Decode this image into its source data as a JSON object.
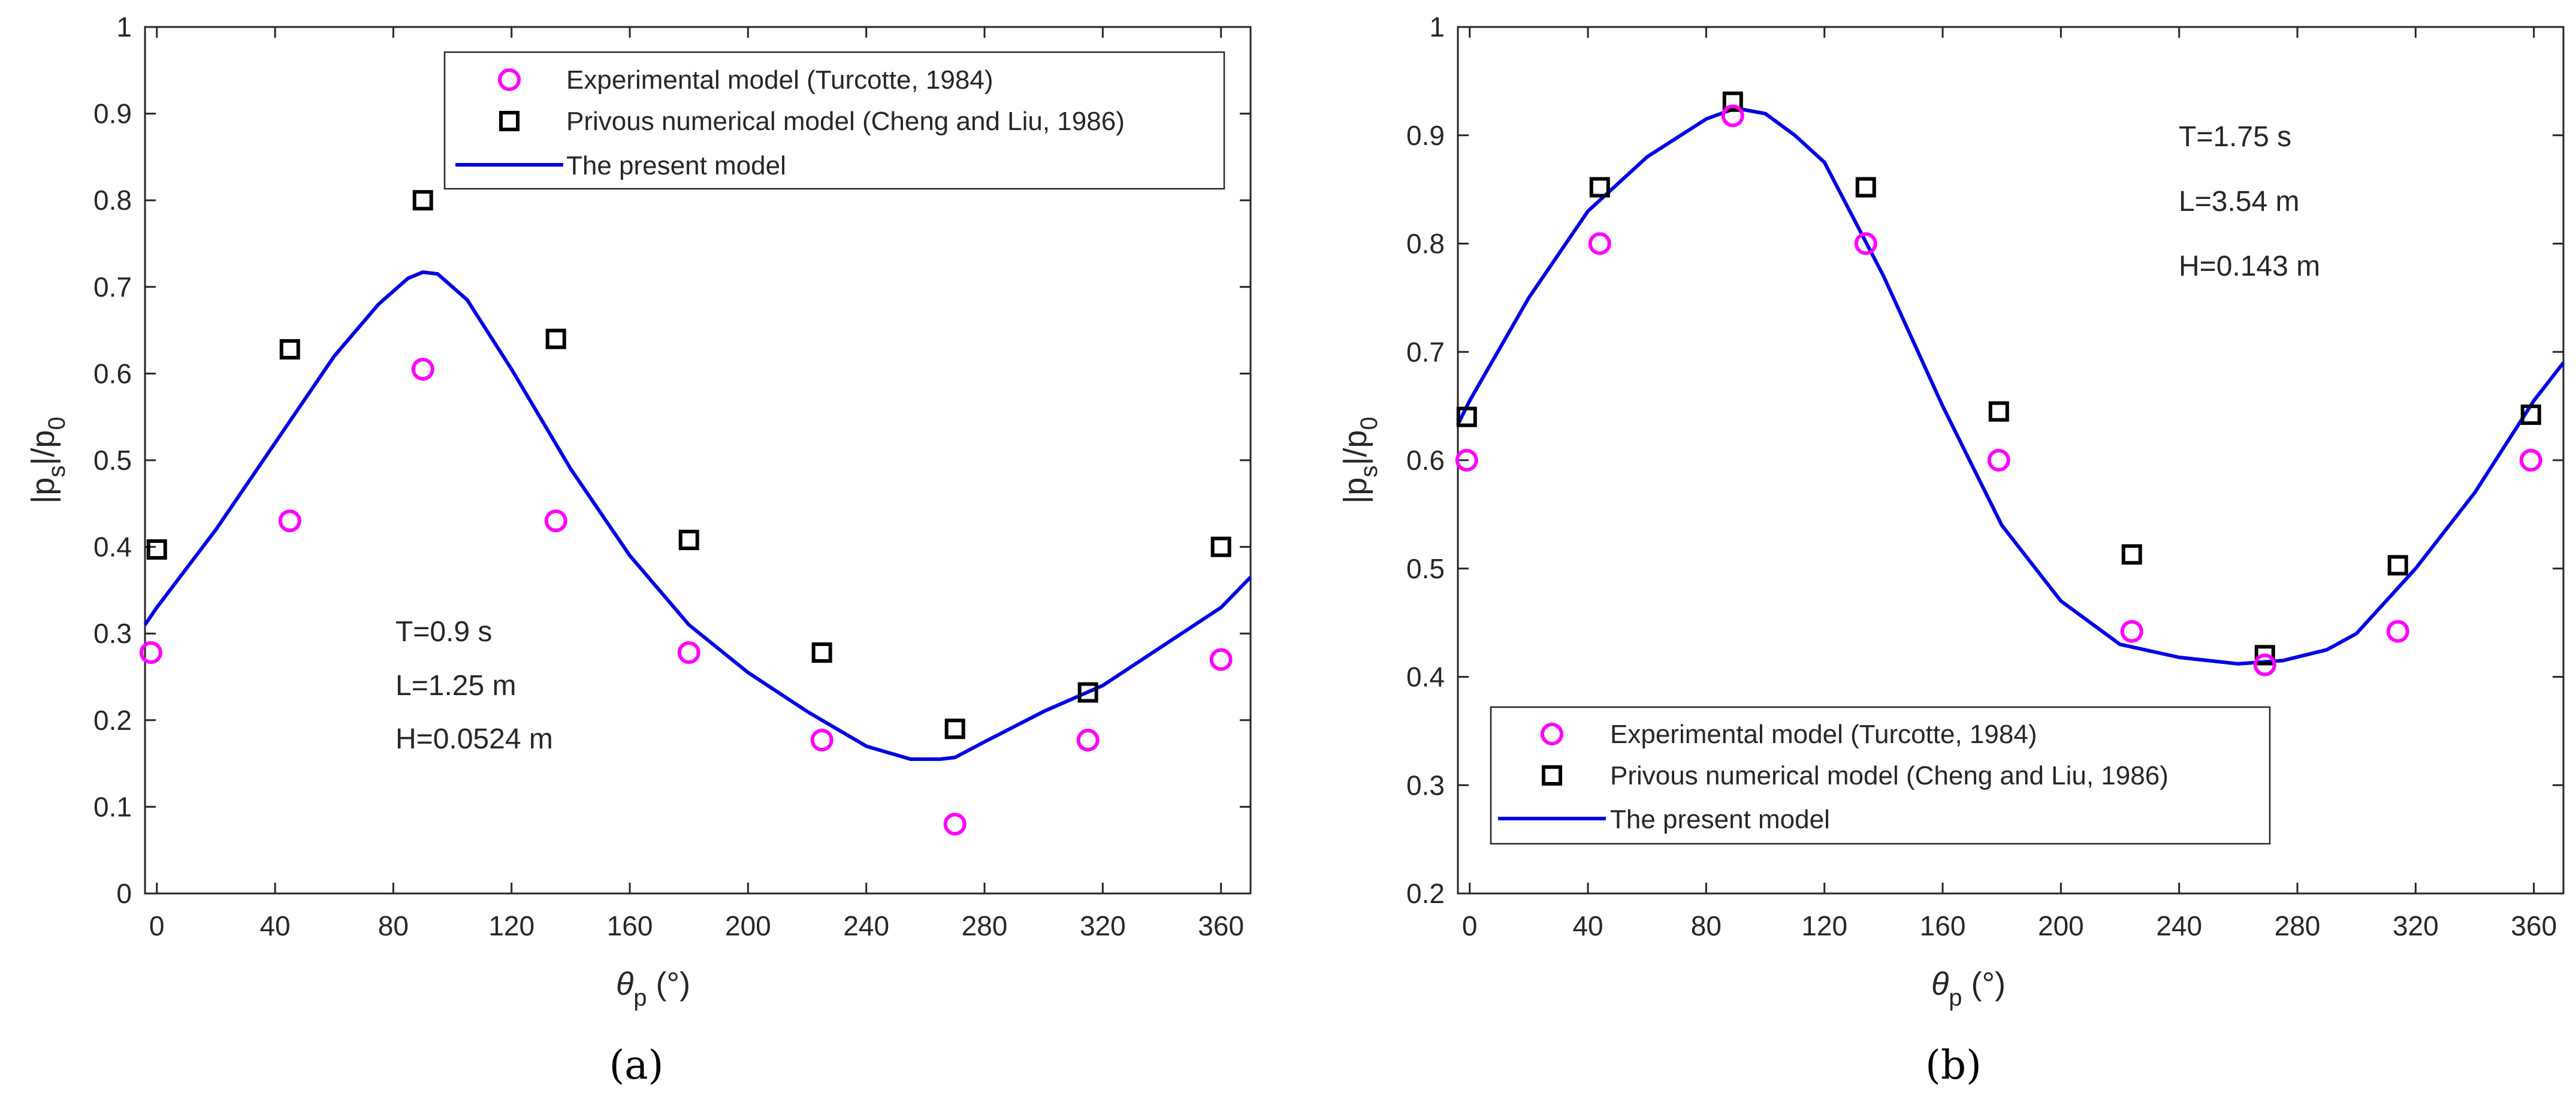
{
  "chart_data": [
    {
      "panel_label": "(a)",
      "type": "line",
      "xlabel_symbol": "θ",
      "xlabel_sub": "p",
      "xlabel_unit": " (°)",
      "ylabel_a": "|p",
      "ylabel_sub1": "s",
      "ylabel_b": "|/p",
      "ylabel_sub2": "0",
      "xlim": [
        -4,
        370
      ],
      "ylim": [
        0,
        1
      ],
      "xticks": [
        0,
        40,
        80,
        120,
        160,
        200,
        240,
        280,
        320,
        360
      ],
      "yticks": [
        0,
        0.1,
        0.2,
        0.3,
        0.4,
        0.5,
        0.6,
        0.7,
        0.8,
        0.9,
        1
      ],
      "ytick_labels": [
        "0",
        "0.1",
        "0.2",
        "0.3",
        "0.4",
        "0.5",
        "0.6",
        "0.7",
        "0.8",
        "0.9",
        "1"
      ],
      "legend_position": "top-right",
      "annotations": [
        "T=0.9 s",
        "L=1.25 m",
        "H=0.0524 m"
      ],
      "series": [
        {
          "name": "Experimental model (Turcotte, 1984)",
          "marker": "circle",
          "color": "#ff00ff",
          "x": [
            -2,
            45,
            90,
            135,
            180,
            225,
            270,
            315,
            360
          ],
          "y": [
            0.278,
            0.43,
            0.605,
            0.43,
            0.278,
            0.177,
            0.08,
            0.177,
            0.27
          ]
        },
        {
          "name": "Privous numerical model (Cheng and Liu, 1986)",
          "marker": "square",
          "color": "#000000",
          "x": [
            0,
            45,
            90,
            135,
            180,
            225,
            270,
            315,
            360
          ],
          "y": [
            0.397,
            0.628,
            0.8,
            0.64,
            0.408,
            0.278,
            0.19,
            0.232,
            0.4
          ]
        },
        {
          "name": "The present model",
          "marker": "line",
          "color": "#0000e6",
          "x": [
            -4,
            0,
            20,
            40,
            60,
            75,
            85,
            90,
            95,
            105,
            120,
            140,
            160,
            180,
            200,
            220,
            240,
            255,
            265,
            270,
            280,
            300,
            320,
            340,
            360,
            370
          ],
          "y": [
            0.31,
            0.33,
            0.42,
            0.52,
            0.62,
            0.68,
            0.71,
            0.717,
            0.715,
            0.685,
            0.605,
            0.49,
            0.39,
            0.31,
            0.255,
            0.21,
            0.17,
            0.155,
            0.155,
            0.157,
            0.175,
            0.21,
            0.24,
            0.285,
            0.33,
            0.365
          ]
        }
      ]
    },
    {
      "panel_label": "(b)",
      "type": "line",
      "xlabel_symbol": "θ",
      "xlabel_sub": "p",
      "xlabel_unit": " (°)",
      "ylabel_a": "|p",
      "ylabel_sub1": "s",
      "ylabel_b": "|/p",
      "ylabel_sub2": "0",
      "xlim": [
        -4,
        370
      ],
      "ylim": [
        0.2,
        1
      ],
      "xticks": [
        0,
        40,
        80,
        120,
        160,
        200,
        240,
        280,
        320,
        360
      ],
      "yticks": [
        0.2,
        0.3,
        0.4,
        0.5,
        0.6,
        0.7,
        0.8,
        0.9,
        1
      ],
      "ytick_labels": [
        "0.2",
        "0.3",
        "0.4",
        "0.5",
        "0.6",
        "0.7",
        "0.8",
        "0.9",
        "1"
      ],
      "legend_position": "bottom-left",
      "annotations": [
        "T=1.75 s",
        "L=3.54 m",
        "H=0.143 m"
      ],
      "series": [
        {
          "name": "Experimental model (Turcotte, 1984)",
          "marker": "circle",
          "color": "#ff00ff",
          "x": [
            -1,
            44,
            89,
            134,
            179,
            224,
            269,
            314,
            359
          ],
          "y": [
            0.6,
            0.8,
            0.918,
            0.8,
            0.6,
            0.442,
            0.411,
            0.442,
            0.6
          ]
        },
        {
          "name": "Privous numerical model (Cheng and Liu, 1986)",
          "marker": "square",
          "color": "#000000",
          "x": [
            -1,
            44,
            89,
            134,
            179,
            224,
            269,
            314,
            359
          ],
          "y": [
            0.64,
            0.852,
            0.931,
            0.852,
            0.645,
            0.513,
            0.42,
            0.503,
            0.642
          ]
        },
        {
          "name": "The present model",
          "marker": "line",
          "color": "#0000e6",
          "x": [
            -4,
            0,
            20,
            40,
            60,
            80,
            90,
            100,
            110,
            120,
            140,
            160,
            180,
            200,
            220,
            240,
            260,
            275,
            290,
            300,
            320,
            340,
            360,
            370
          ],
          "y": [
            0.633,
            0.655,
            0.75,
            0.83,
            0.88,
            0.915,
            0.925,
            0.92,
            0.9,
            0.875,
            0.77,
            0.65,
            0.54,
            0.47,
            0.43,
            0.418,
            0.412,
            0.415,
            0.425,
            0.44,
            0.5,
            0.57,
            0.655,
            0.69
          ]
        }
      ]
    }
  ]
}
